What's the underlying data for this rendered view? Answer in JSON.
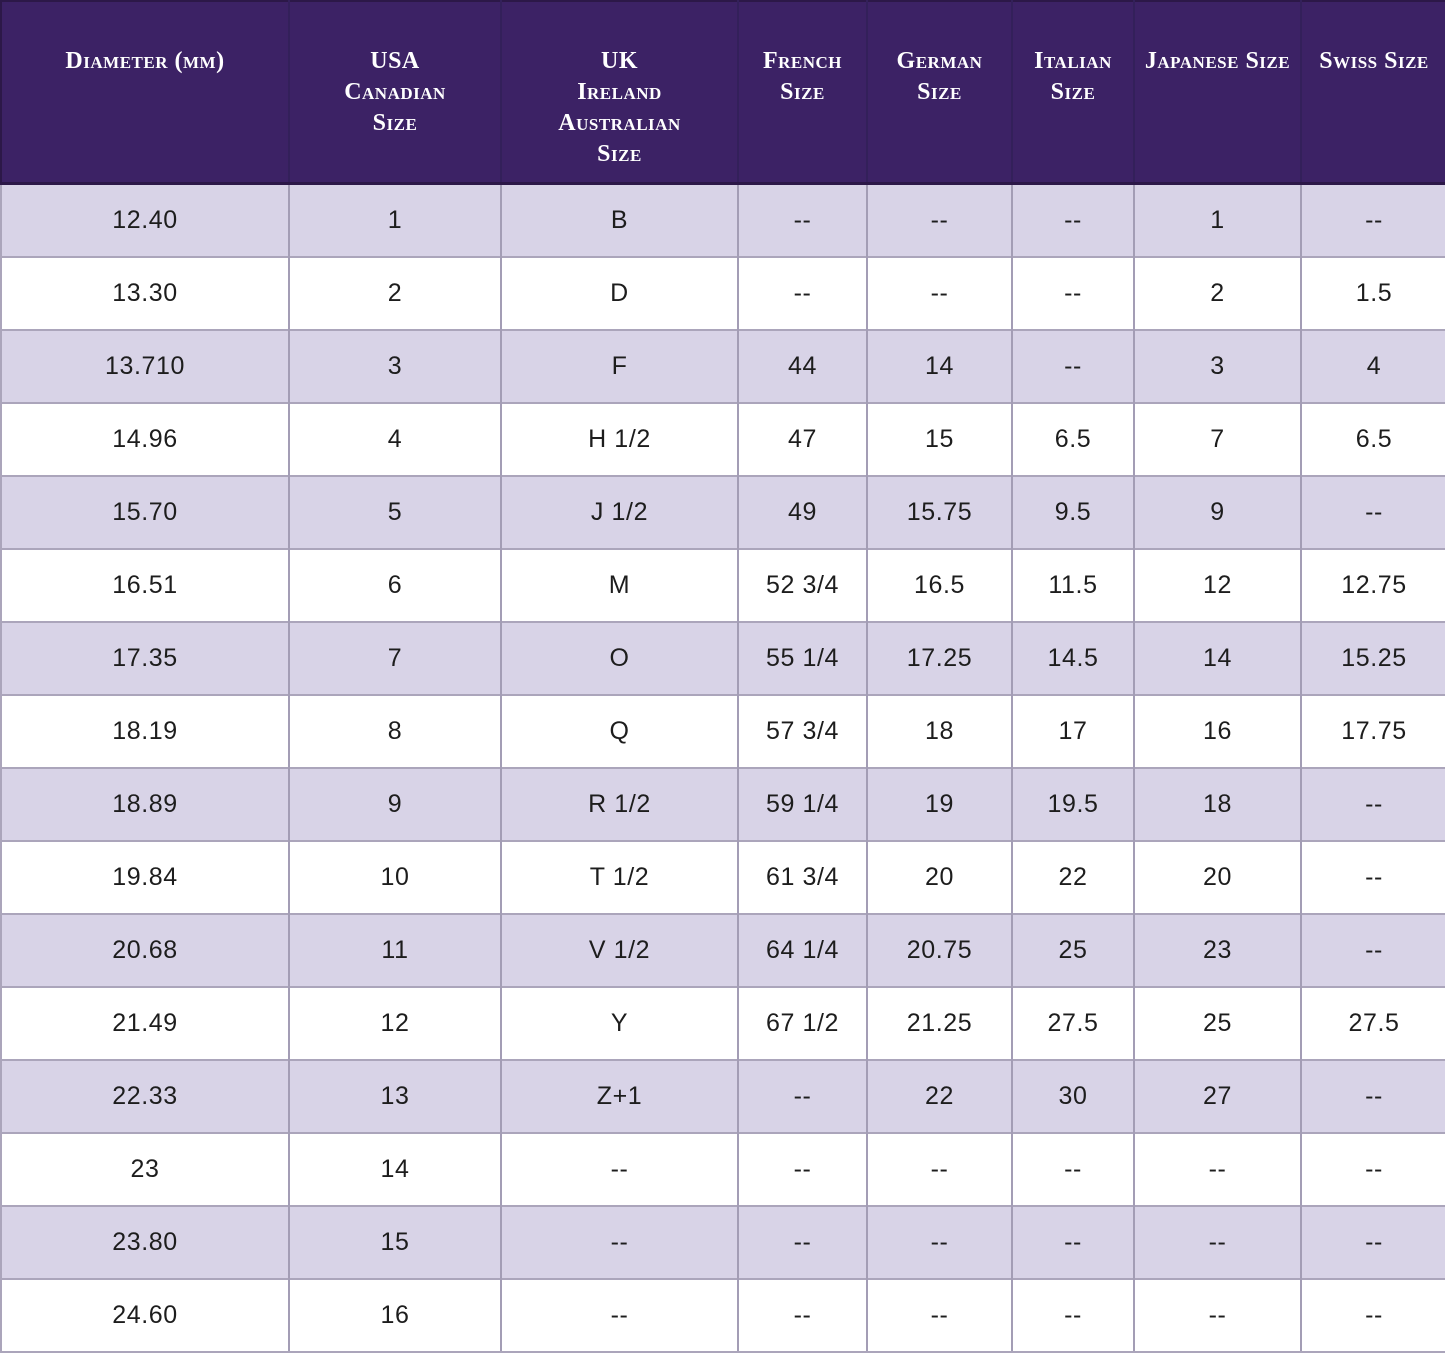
{
  "colors": {
    "header_background": "#3c2265",
    "header_text": "#ffffff",
    "row_alternate_background": "#d8d3e7",
    "row_background": "#ffffff",
    "grid_line": "#a39db5",
    "header_border": "#2c1848",
    "cell_text": "#1d1d1d"
  },
  "chart_data": {
    "type": "table",
    "empty_value": "--",
    "columns": [
      {
        "id": "diameter-mm",
        "label": "Diameter (mm)"
      },
      {
        "id": "usa-canadian-size",
        "label": "USA\nCanadian\nSize"
      },
      {
        "id": "uk-ireland-australian-size",
        "label": "UK\nIreland\nAustralian\nSize"
      },
      {
        "id": "french-size",
        "label": "French\nSize"
      },
      {
        "id": "german-size",
        "label": "German\nSize"
      },
      {
        "id": "italian-size",
        "label": "Italian\nSize"
      },
      {
        "id": "japanese-size",
        "label": "Japanese Size"
      },
      {
        "id": "swiss-size",
        "label": "Swiss Size"
      }
    ],
    "rows": [
      [
        "12.40",
        "1",
        "B",
        "--",
        "--",
        "--",
        "1",
        "--"
      ],
      [
        "13.30",
        "2",
        "D",
        "--",
        "--",
        "--",
        "2",
        "1.5"
      ],
      [
        "13.710",
        "3",
        "F",
        "44",
        "14",
        "--",
        "3",
        "4"
      ],
      [
        "14.96",
        "4",
        "H 1/2",
        "47",
        "15",
        "6.5",
        "7",
        "6.5"
      ],
      [
        "15.70",
        "5",
        "J 1/2",
        "49",
        "15.75",
        "9.5",
        "9",
        "--"
      ],
      [
        "16.51",
        "6",
        "M",
        "52 3/4",
        "16.5",
        "11.5",
        "12",
        "12.75"
      ],
      [
        "17.35",
        "7",
        "O",
        "55 1/4",
        "17.25",
        "14.5",
        "14",
        "15.25"
      ],
      [
        "18.19",
        "8",
        "Q",
        "57 3/4",
        "18",
        "17",
        "16",
        "17.75"
      ],
      [
        "18.89",
        "9",
        "R 1/2",
        "59 1/4",
        "19",
        "19.5",
        "18",
        "--"
      ],
      [
        "19.84",
        "10",
        "T 1/2",
        "61 3/4",
        "20",
        "22",
        "20",
        "--"
      ],
      [
        "20.68",
        "11",
        "V 1/2",
        "64 1/4",
        "20.75",
        "25",
        "23",
        "--"
      ],
      [
        "21.49",
        "12",
        "Y",
        "67 1/2",
        "21.25",
        "27.5",
        "25",
        "27.5"
      ],
      [
        "22.33",
        "13",
        "Z+1",
        "--",
        "22",
        "30",
        "27",
        "--"
      ],
      [
        "23",
        "14",
        "--",
        "--",
        "--",
        "--",
        "--",
        "--"
      ],
      [
        "23.80",
        "15",
        "--",
        "--",
        "--",
        "--",
        "--",
        "--"
      ],
      [
        "24.60",
        "16",
        "--",
        "--",
        "--",
        "--",
        "--",
        "--"
      ]
    ]
  }
}
